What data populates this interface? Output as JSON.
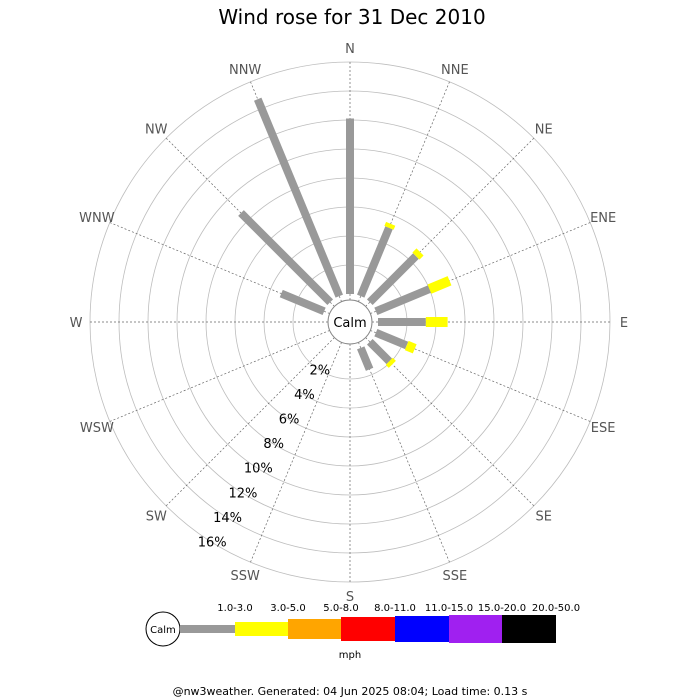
{
  "chart_data": {
    "type": "wind-rose",
    "title": "Wind rose for 31 Dec 2010",
    "directions": [
      "N",
      "NNE",
      "NE",
      "ENE",
      "E",
      "ESE",
      "SE",
      "SSE",
      "S",
      "SSW",
      "SW",
      "WSW",
      "W",
      "WNW",
      "NW",
      "NNW"
    ],
    "radial_labels": [
      "2%",
      "4%",
      "6%",
      "8%",
      "10%",
      "12%",
      "14%",
      "16%"
    ],
    "radial_max": 16,
    "calm_label": "Calm",
    "speed_bins": [
      "1.0-3.0",
      "3.0-5.0",
      "5.0-8.0",
      "8.0-11.0",
      "11.0-15.0",
      "15.0-20.0",
      "20.0-50.0"
    ],
    "bin_colors": [
      "#999999",
      "#ffff00",
      "#ffa500",
      "#ff0000",
      "#0000ff",
      "#a020f0",
      "#000000"
    ],
    "unit": "mph",
    "series": [
      {
        "direction": "N",
        "values": [
          12.1,
          0,
          0,
          0,
          0,
          0,
          0
        ]
      },
      {
        "direction": "NNE",
        "values": [
          5.1,
          0.3,
          0,
          0,
          0,
          0,
          0
        ]
      },
      {
        "direction": "NE",
        "values": [
          4.5,
          0.4,
          0,
          0,
          0,
          0,
          0
        ]
      },
      {
        "direction": "ENE",
        "values": [
          4.0,
          1.5,
          0,
          0,
          0,
          0,
          0
        ]
      },
      {
        "direction": "E",
        "values": [
          3.3,
          1.5,
          0,
          0,
          0,
          0,
          0
        ]
      },
      {
        "direction": "ESE",
        "values": [
          2.3,
          0.6,
          0,
          0,
          0,
          0,
          0
        ]
      },
      {
        "direction": "SE",
        "values": [
          1.9,
          0.3,
          0,
          0,
          0,
          0,
          0
        ]
      },
      {
        "direction": "SSE",
        "values": [
          1.6,
          0,
          0,
          0,
          0,
          0,
          0
        ]
      },
      {
        "direction": "S",
        "values": [
          0,
          0,
          0,
          0,
          0,
          0,
          0
        ]
      },
      {
        "direction": "SSW",
        "values": [
          0,
          0,
          0,
          0,
          0,
          0,
          0
        ]
      },
      {
        "direction": "SW",
        "values": [
          0,
          0,
          0,
          0,
          0,
          0,
          0
        ]
      },
      {
        "direction": "WSW",
        "values": [
          0,
          0,
          0,
          0,
          0,
          0,
          0
        ]
      },
      {
        "direction": "W",
        "values": [
          0,
          0,
          0,
          0,
          0,
          0,
          0
        ]
      },
      {
        "direction": "WNW",
        "values": [
          3.2,
          0,
          0,
          0,
          0,
          0,
          0
        ]
      },
      {
        "direction": "NW",
        "values": [
          8.7,
          0,
          0,
          0,
          0,
          0,
          0
        ]
      },
      {
        "direction": "NNW",
        "values": [
          14.7,
          0,
          0,
          0,
          0,
          0,
          0
        ]
      }
    ]
  },
  "footer": "@nw3weather. Generated: 04 Jun 2025 08:04; Load time: 0.13 s"
}
